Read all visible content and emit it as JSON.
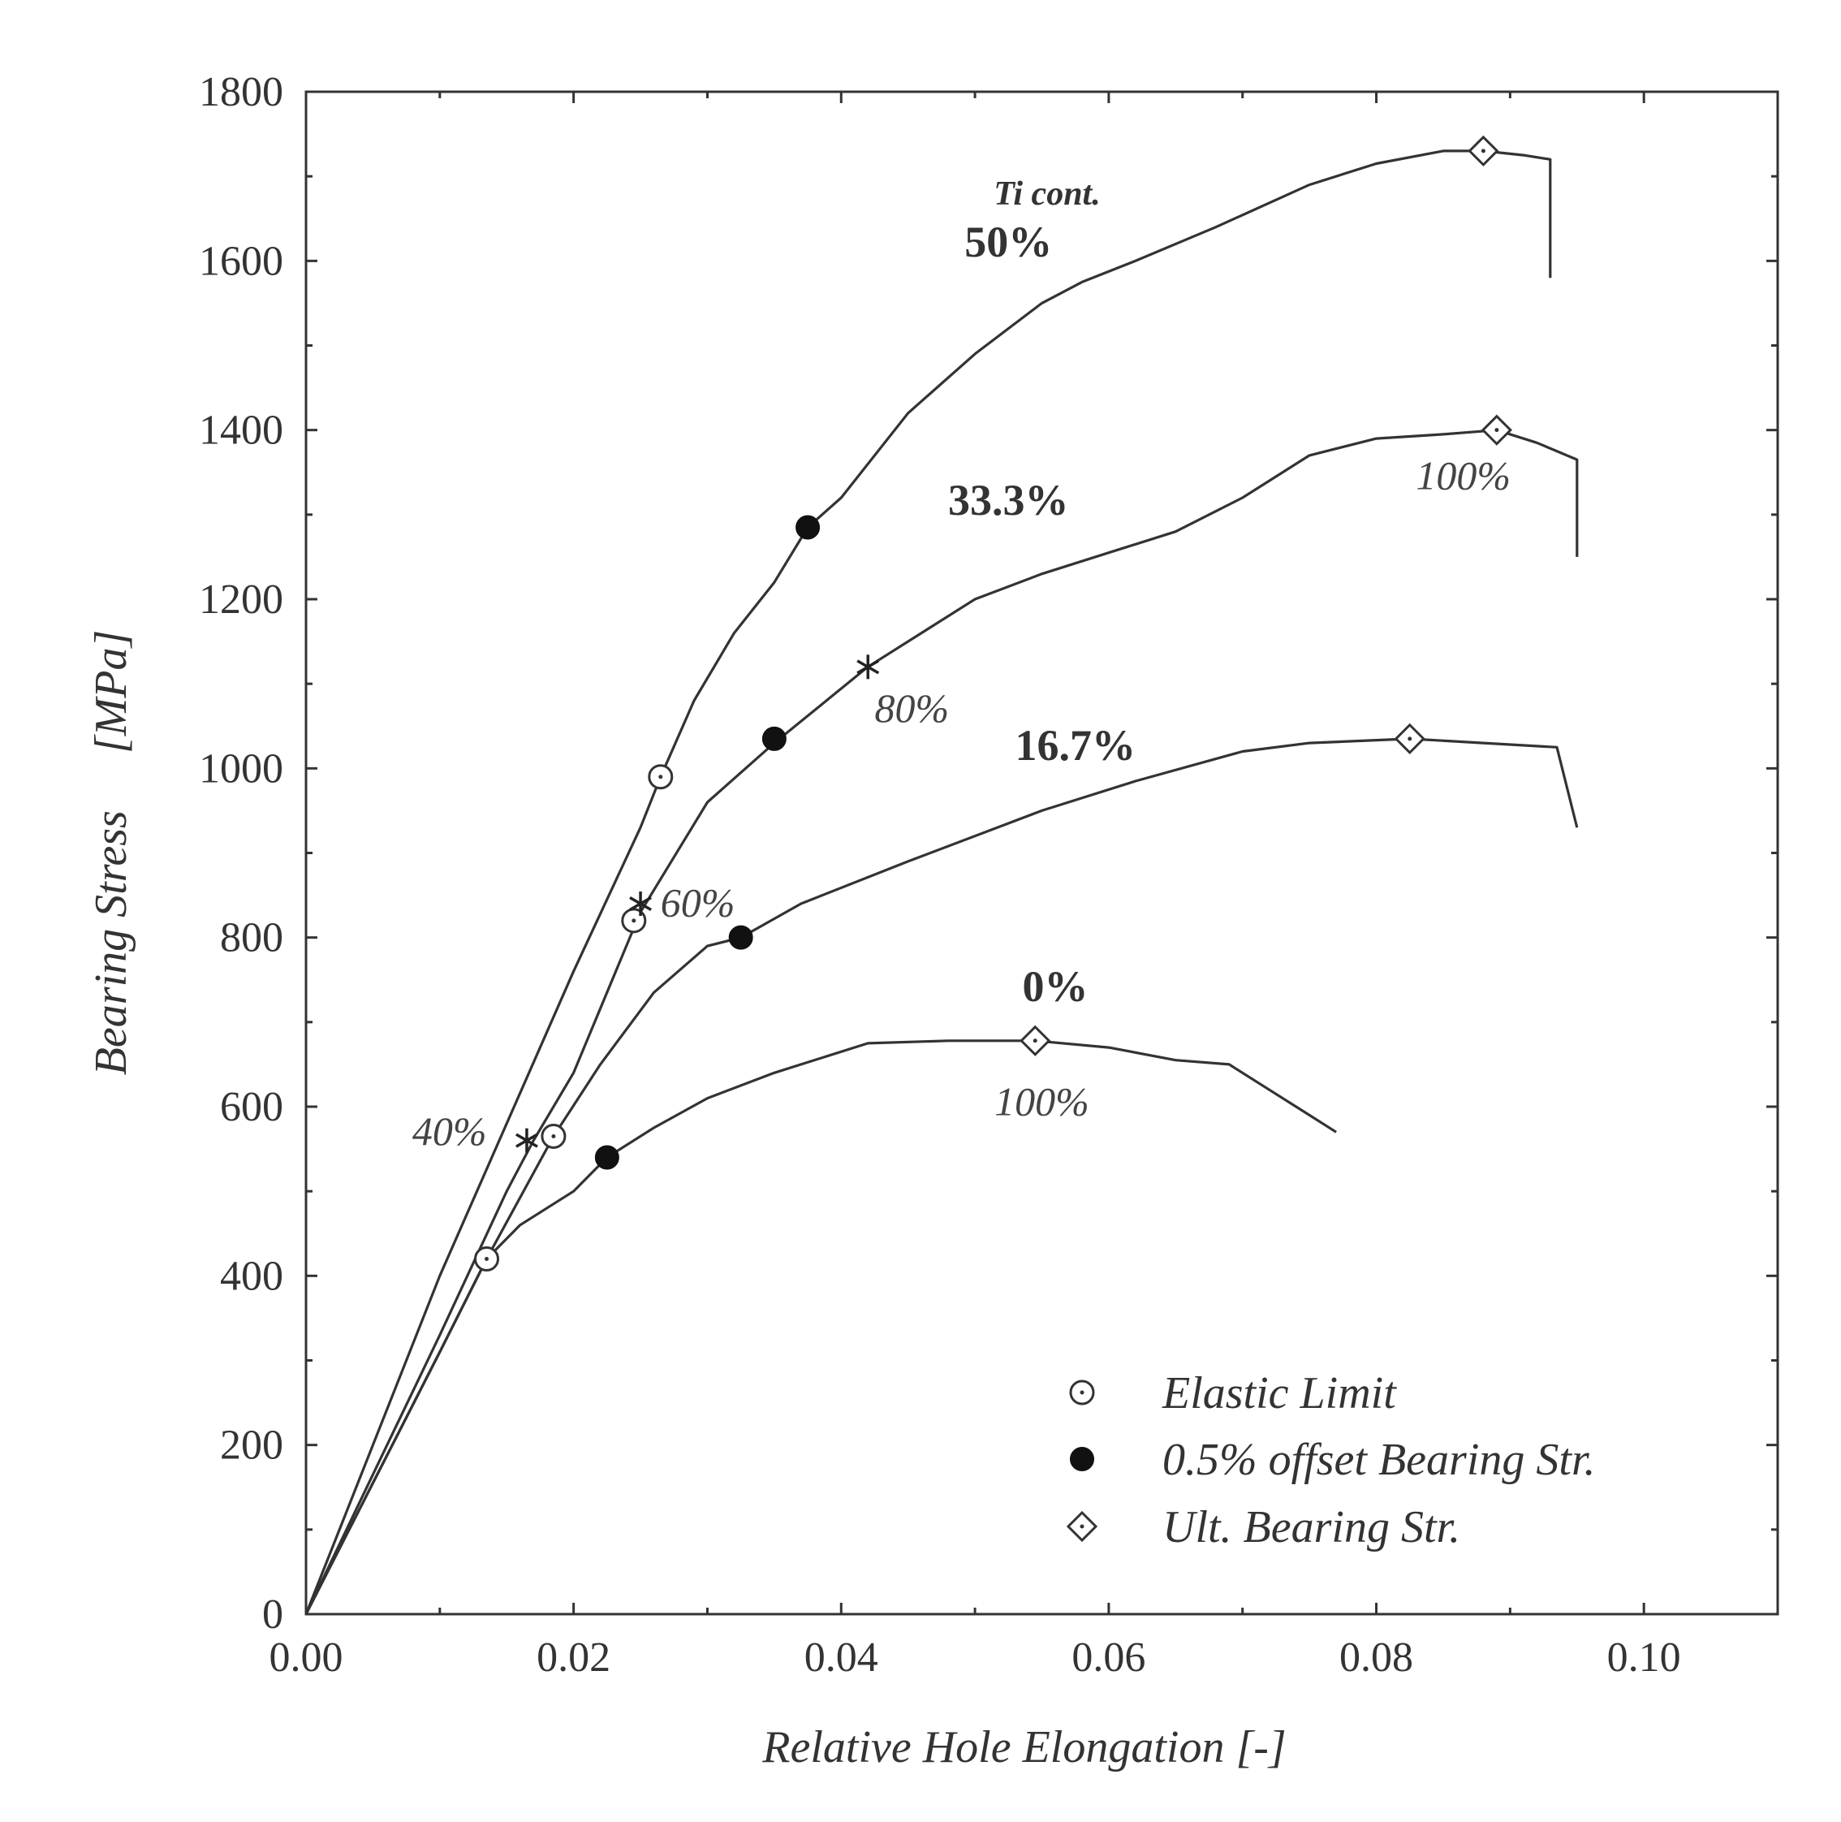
{
  "chart_data": {
    "type": "line",
    "xlabel": "Relative Hole Elongation [-]",
    "ylabel": "Bearing Stress     [MPa]",
    "xlim": [
      0,
      0.11
    ],
    "ylim": [
      0,
      1800
    ],
    "xticks": [
      0,
      0.02,
      0.04,
      0.06,
      0.08,
      0.1
    ],
    "xtick_labels": [
      "0.00",
      "0.02",
      "0.04",
      "0.06",
      "0.08",
      "0.10"
    ],
    "yticks": [
      0,
      200,
      400,
      600,
      800,
      1000,
      1200,
      1400,
      1600,
      1800
    ],
    "ytick_labels": [
      "0",
      "200",
      "400",
      "600",
      "800",
      "1000",
      "1200",
      "1400",
      "1600",
      "1800"
    ],
    "header": "Ti cont.",
    "series": [
      {
        "name": "50%",
        "label_pos": [
          0.0525,
          1605
        ],
        "x": [
          0,
          0.005,
          0.01,
          0.015,
          0.02,
          0.025,
          0.0265,
          0.029,
          0.032,
          0.035,
          0.0375,
          0.04,
          0.045,
          0.05,
          0.055,
          0.058,
          0.062,
          0.068,
          0.075,
          0.08,
          0.085,
          0.088,
          0.091,
          0.093,
          0.093
        ],
        "y": [
          0,
          200,
          400,
          580,
          760,
          930,
          990,
          1080,
          1160,
          1220,
          1285,
          1320,
          1420,
          1490,
          1550,
          1575,
          1600,
          1640,
          1690,
          1715,
          1730,
          1730,
          1725,
          1720,
          1580
        ]
      },
      {
        "name": "33.3%",
        "label_pos": [
          0.0525,
          1300
        ],
        "x": [
          0,
          0.005,
          0.01,
          0.015,
          0.017,
          0.02,
          0.025,
          0.03,
          0.035,
          0.042,
          0.05,
          0.055,
          0.06,
          0.065,
          0.07,
          0.075,
          0.08,
          0.085,
          0.089,
          0.092,
          0.095,
          0.095
        ],
        "y": [
          0,
          165,
          330,
          500,
          560,
          640,
          830,
          960,
          1030,
          1120,
          1200,
          1230,
          1255,
          1280,
          1320,
          1370,
          1390,
          1395,
          1400,
          1385,
          1365,
          1250
        ]
      },
      {
        "name": "16.7%",
        "label_pos": [
          0.0575,
          1010
        ],
        "x": [
          0,
          0.005,
          0.01,
          0.0135,
          0.0185,
          0.022,
          0.026,
          0.03,
          0.0325,
          0.037,
          0.045,
          0.055,
          0.062,
          0.07,
          0.075,
          0.0825,
          0.088,
          0.0935,
          0.095
        ],
        "y": [
          0,
          155,
          310,
          420,
          565,
          650,
          735,
          790,
          800,
          840,
          890,
          950,
          985,
          1020,
          1030,
          1035,
          1030,
          1025,
          930
        ]
      },
      {
        "name": "0%",
        "label_pos": [
          0.056,
          725
        ],
        "x": [
          0,
          0.005,
          0.01,
          0.0135,
          0.016,
          0.02,
          0.0225,
          0.026,
          0.03,
          0.035,
          0.042,
          0.048,
          0.0545,
          0.06,
          0.065,
          0.069,
          0.072,
          0.075,
          0.077
        ],
        "y": [
          0,
          155,
          310,
          420,
          460,
          500,
          540,
          575,
          610,
          640,
          675,
          678,
          678,
          670,
          655,
          650,
          620,
          590,
          570
        ]
      }
    ],
    "elastic_limit": [
      {
        "x": 0.0265,
        "y": 990
      },
      {
        "x": 0.0245,
        "y": 820
      },
      {
        "x": 0.0185,
        "y": 565
      },
      {
        "x": 0.0135,
        "y": 420
      }
    ],
    "offset_bearing": [
      {
        "x": 0.0375,
        "y": 1285
      },
      {
        "x": 0.035,
        "y": 1035
      },
      {
        "x": 0.0325,
        "y": 800
      },
      {
        "x": 0.0225,
        "y": 540
      }
    ],
    "ultimate_bearing": [
      {
        "x": 0.088,
        "y": 1730
      },
      {
        "x": 0.089,
        "y": 1400
      },
      {
        "x": 0.0825,
        "y": 1035
      },
      {
        "x": 0.0545,
        "y": 678
      }
    ],
    "star_markers": [
      {
        "x": 0.0165,
        "y": 560,
        "label": "40%",
        "anchor": "end",
        "label_pos": [
          0.0135,
          555
        ]
      },
      {
        "x": 0.025,
        "y": 840,
        "label": "60%",
        "anchor": "start",
        "label_pos": [
          0.0265,
          825
        ]
      },
      {
        "x": 0.042,
        "y": 1120,
        "label": "80%",
        "anchor": "start",
        "label_pos": [
          0.0425,
          1055
        ]
      }
    ],
    "annotations": [
      {
        "text": "100%",
        "x": 0.0865,
        "y": 1330
      },
      {
        "text": "100%",
        "x": 0.055,
        "y": 590
      }
    ],
    "legend": {
      "position": "bottom-right",
      "items": [
        {
          "marker": "elastic",
          "label": "Elastic Limit"
        },
        {
          "marker": "offset",
          "label": "0.5% offset Bearing Str."
        },
        {
          "marker": "ultimate",
          "label": "Ult. Bearing Str."
        }
      ]
    }
  }
}
